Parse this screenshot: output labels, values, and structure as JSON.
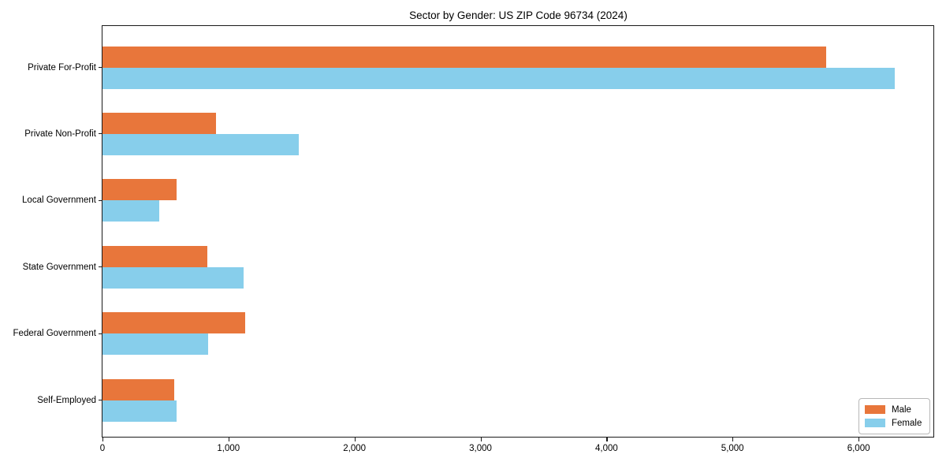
{
  "chart_data": {
    "type": "bar",
    "orientation": "horizontal",
    "title": "Sector by Gender: US ZIP Code 96734 (2024)",
    "categories": [
      "Private For-Profit",
      "Private Non-Profit",
      "Local Government",
      "State Government",
      "Federal Government",
      "Self-Employed"
    ],
    "series": [
      {
        "name": "Male",
        "color": "#e8763b",
        "values": [
          5740,
          900,
          590,
          830,
          1130,
          570
        ]
      },
      {
        "name": "Female",
        "color": "#87ceeb",
        "values": [
          6290,
          1560,
          450,
          1120,
          840,
          590
        ]
      }
    ],
    "xlabel": "",
    "ylabel": "",
    "xlim": [
      0,
      6600
    ],
    "xticks": [
      0,
      1000,
      2000,
      3000,
      4000,
      5000,
      6000
    ],
    "xtick_labels": [
      "0",
      "1,000",
      "2,000",
      "3,000",
      "4,000",
      "5,000",
      "6,000"
    ],
    "grid": false,
    "legend_position": "lower right",
    "legend_items": [
      {
        "label": "Male",
        "color": "#e8763b"
      },
      {
        "label": "Female",
        "color": "#87ceeb"
      }
    ]
  }
}
